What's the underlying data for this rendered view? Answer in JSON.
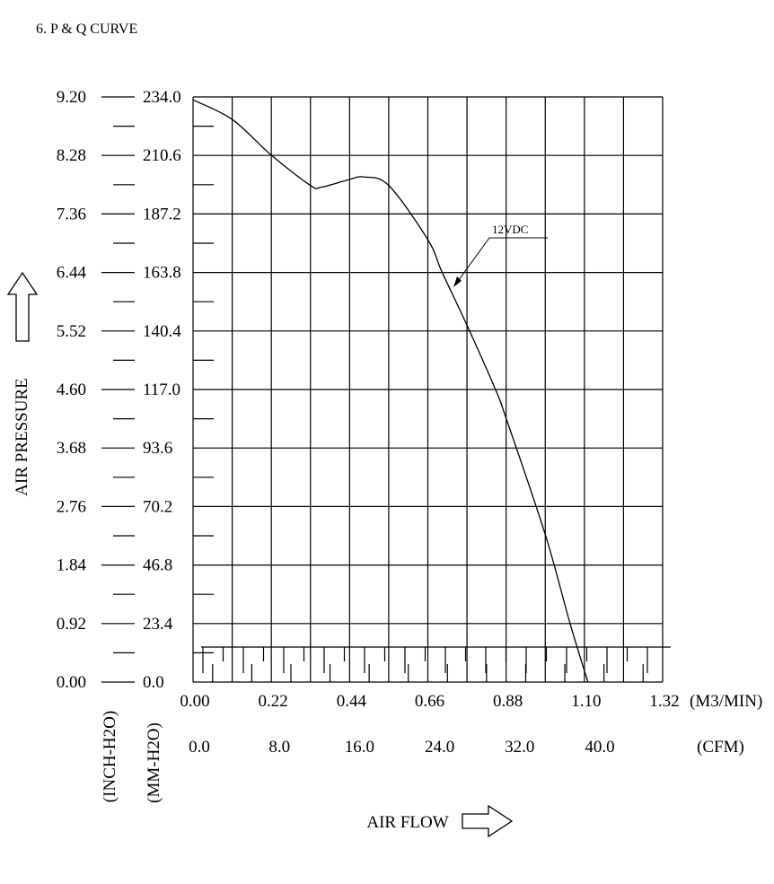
{
  "title": "6. P & Q CURVE",
  "chart_data": {
    "type": "line",
    "title": "6. P & Q CURVE",
    "xlabel": "AIR FLOW",
    "ylabel": "AIR PRESSURE",
    "x_unit": "(M3/MIN)",
    "x2_unit": "(CFM)",
    "y_unit_inch": "(INCH-H2O)",
    "y_unit_mm": "(MM-H2O)",
    "xlim": [
      0,
      1.32
    ],
    "ylim": [
      0,
      234
    ],
    "grid": true,
    "x_ticks": [
      "0.00",
      "0.22",
      "0.44",
      "0.66",
      "0.88",
      "1.10",
      "1.32"
    ],
    "x2_ticks": [
      "0.0",
      "8.0",
      "16.0",
      "24.0",
      "32.0",
      "40.0"
    ],
    "y_ticks_mm": [
      "0.0",
      "23.4",
      "46.8",
      "70.2",
      "93.6",
      "117.0",
      "140.4",
      "163.8",
      "187.2",
      "210.6",
      "234.0"
    ],
    "y_ticks_inch": [
      "0.00",
      "0.92",
      "1.84",
      "2.76",
      "3.68",
      "4.60",
      "5.52",
      "6.44",
      "7.36",
      "8.28",
      "9.20"
    ],
    "series": [
      {
        "name": "12VDC",
        "x": [
          0,
          0.11,
          0.22,
          0.33,
          0.36,
          0.44,
          0.48,
          0.55,
          0.66,
          0.7,
          0.77,
          0.85,
          0.88,
          0.99,
          1.06,
          1.11
        ],
        "y": [
          232.8,
          225,
          210.7,
          198.6,
          197.9,
          201,
          202,
          198.6,
          176.9,
          163.9,
          142.7,
          117,
          105.5,
          59,
          23.3,
          0
        ]
      }
    ]
  }
}
